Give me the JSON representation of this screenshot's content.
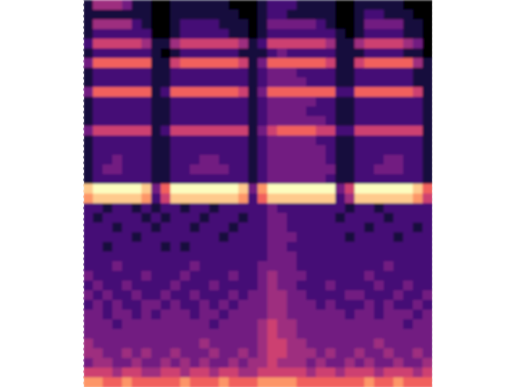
{
  "chart_data": {
    "type": "heatmap",
    "tick_labels": false,
    "xlim": [
      0,
      36
    ],
    "ylim": [
      0,
      40
    ],
    "zlim": [
      0,
      9
    ],
    "cells": [
      [
        1,
        4,
        4,
        4,
        3,
        1,
        1,
        0,
        0,
        1,
        1,
        1,
        1,
        1,
        1,
        0,
        0,
        0,
        1,
        2,
        2,
        2,
        1,
        1,
        1,
        1,
        0,
        0,
        1,
        1,
        1,
        1,
        1,
        0,
        0,
        0
      ],
      [
        1,
        1,
        1,
        1,
        1,
        1,
        1,
        0,
        0,
        1,
        1,
        1,
        1,
        1,
        1,
        1,
        0,
        0,
        1,
        2,
        2,
        1,
        1,
        1,
        1,
        1,
        0,
        0,
        1,
        2,
        2,
        1,
        1,
        1,
        0,
        0
      ],
      [
        1,
        4,
        4,
        4,
        4,
        2,
        1,
        0,
        0,
        1,
        2,
        2,
        2,
        2,
        1,
        1,
        1,
        0,
        1,
        3,
        3,
        3,
        3,
        3,
        2,
        1,
        0,
        0,
        1,
        3,
        3,
        3,
        3,
        1,
        1,
        0
      ],
      [
        1,
        2,
        2,
        2,
        2,
        2,
        2,
        0,
        0,
        1,
        2,
        2,
        2,
        2,
        2,
        1,
        1,
        0,
        1,
        2,
        2,
        2,
        2,
        2,
        2,
        2,
        1,
        0,
        1,
        2,
        2,
        2,
        2,
        1,
        1,
        0
      ],
      [
        2,
        5,
        5,
        5,
        5,
        5,
        4,
        1,
        1,
        4,
        5,
        5,
        5,
        5,
        5,
        5,
        4,
        1,
        2,
        5,
        5,
        5,
        5,
        5,
        5,
        4,
        1,
        1,
        4,
        5,
        5,
        5,
        5,
        4,
        3,
        0
      ],
      [
        1,
        2,
        2,
        2,
        2,
        2,
        2,
        1,
        0,
        1,
        2,
        2,
        2,
        2,
        2,
        2,
        1,
        1,
        1,
        2,
        3,
        2,
        2,
        2,
        2,
        2,
        1,
        1,
        1,
        2,
        2,
        2,
        2,
        1,
        1,
        0
      ],
      [
        3,
        6,
        6,
        6,
        6,
        6,
        6,
        1,
        1,
        5,
        6,
        6,
        6,
        6,
        6,
        6,
        5,
        1,
        3,
        6,
        6,
        6,
        6,
        6,
        6,
        5,
        1,
        1,
        5,
        6,
        6,
        6,
        6,
        6,
        4,
        1
      ],
      [
        1,
        2,
        2,
        2,
        2,
        2,
        2,
        1,
        1,
        2,
        2,
        2,
        2,
        2,
        2,
        2,
        2,
        1,
        2,
        3,
        3,
        3,
        2,
        2,
        2,
        2,
        1,
        1,
        2,
        2,
        2,
        2,
        2,
        2,
        1,
        1
      ],
      [
        1,
        2,
        2,
        2,
        2,
        2,
        2,
        1,
        1,
        2,
        2,
        2,
        2,
        2,
        2,
        2,
        2,
        1,
        2,
        3,
        3,
        3,
        3,
        2,
        2,
        2,
        1,
        1,
        2,
        2,
        2,
        2,
        2,
        2,
        1,
        1
      ],
      [
        3,
        6,
        6,
        6,
        6,
        6,
        6,
        1,
        2,
        6,
        6,
        6,
        6,
        6,
        6,
        6,
        5,
        1,
        3,
        6,
        6,
        6,
        6,
        6,
        6,
        6,
        2,
        2,
        6,
        6,
        6,
        6,
        6,
        6,
        5,
        1
      ],
      [
        1,
        2,
        2,
        2,
        2,
        2,
        2,
        1,
        1,
        2,
        2,
        2,
        2,
        2,
        2,
        2,
        2,
        1,
        2,
        3,
        3,
        3,
        3,
        3,
        2,
        2,
        1,
        1,
        2,
        2,
        2,
        2,
        2,
        2,
        2,
        1
      ],
      [
        1,
        2,
        2,
        2,
        2,
        2,
        2,
        1,
        1,
        2,
        2,
        2,
        2,
        2,
        2,
        2,
        2,
        1,
        2,
        3,
        3,
        3,
        3,
        2,
        2,
        2,
        1,
        1,
        2,
        2,
        2,
        2,
        2,
        2,
        2,
        1
      ],
      [
        1,
        2,
        2,
        2,
        2,
        2,
        2,
        1,
        1,
        2,
        2,
        2,
        2,
        2,
        2,
        2,
        2,
        1,
        2,
        3,
        3,
        3,
        3,
        3,
        3,
        2,
        1,
        1,
        2,
        2,
        2,
        2,
        2,
        2,
        2,
        1
      ],
      [
        3,
        5,
        5,
        5,
        5,
        5,
        5,
        1,
        2,
        5,
        5,
        5,
        5,
        5,
        5,
        5,
        5,
        1,
        3,
        5,
        6,
        6,
        6,
        6,
        5,
        5,
        2,
        2,
        5,
        5,
        5,
        5,
        5,
        5,
        5,
        1
      ],
      [
        1,
        2,
        2,
        2,
        2,
        2,
        2,
        1,
        1,
        2,
        2,
        2,
        2,
        2,
        2,
        2,
        2,
        1,
        2,
        3,
        3,
        3,
        3,
        3,
        2,
        2,
        1,
        1,
        2,
        2,
        2,
        2,
        2,
        2,
        2,
        1
      ],
      [
        1,
        2,
        2,
        2,
        2,
        2,
        2,
        1,
        1,
        2,
        2,
        2,
        2,
        2,
        2,
        2,
        2,
        1,
        2,
        3,
        3,
        3,
        3,
        3,
        3,
        2,
        1,
        1,
        2,
        2,
        2,
        2,
        2,
        2,
        2,
        1
      ],
      [
        1,
        2,
        2,
        3,
        2,
        2,
        2,
        1,
        1,
        2,
        2,
        2,
        3,
        3,
        2,
        2,
        2,
        1,
        2,
        3,
        3,
        3,
        3,
        3,
        3,
        2,
        1,
        1,
        2,
        2,
        2,
        3,
        3,
        2,
        2,
        1
      ],
      [
        1,
        2,
        3,
        3,
        2,
        2,
        2,
        1,
        1,
        2,
        2,
        3,
        3,
        3,
        3,
        2,
        2,
        1,
        2,
        3,
        3,
        3,
        3,
        3,
        3,
        3,
        1,
        1,
        2,
        2,
        3,
        3,
        3,
        2,
        2,
        1
      ],
      [
        1,
        2,
        2,
        2,
        2,
        2,
        2,
        1,
        1,
        2,
        2,
        2,
        2,
        2,
        2,
        2,
        2,
        1,
        2,
        3,
        3,
        3,
        3,
        3,
        3,
        2,
        1,
        1,
        2,
        2,
        2,
        2,
        2,
        2,
        2,
        1
      ],
      [
        8,
        9,
        9,
        9,
        9,
        9,
        8,
        3,
        6,
        9,
        9,
        9,
        9,
        9,
        9,
        9,
        8,
        3,
        7,
        9,
        9,
        9,
        9,
        9,
        9,
        9,
        3,
        5,
        9,
        9,
        9,
        9,
        9,
        9,
        8,
        6
      ],
      [
        7,
        8,
        8,
        8,
        8,
        8,
        7,
        2,
        5,
        8,
        8,
        8,
        8,
        8,
        8,
        8,
        7,
        2,
        6,
        8,
        8,
        8,
        8,
        8,
        8,
        8,
        2,
        4,
        8,
        8,
        8,
        8,
        8,
        8,
        7,
        5
      ],
      [
        2,
        2,
        1,
        2,
        2,
        1,
        2,
        1,
        2,
        2,
        1,
        2,
        2,
        1,
        2,
        2,
        2,
        2,
        2,
        3,
        2,
        2,
        2,
        2,
        2,
        2,
        2,
        1,
        2,
        2,
        1,
        2,
        2,
        2,
        2,
        2
      ],
      [
        2,
        1,
        2,
        2,
        2,
        2,
        1,
        2,
        1,
        2,
        2,
        2,
        1,
        2,
        2,
        2,
        1,
        2,
        2,
        3,
        3,
        2,
        2,
        2,
        2,
        2,
        1,
        2,
        2,
        2,
        2,
        1,
        2,
        2,
        2,
        2
      ],
      [
        2,
        2,
        2,
        1,
        2,
        2,
        2,
        1,
        2,
        2,
        2,
        1,
        2,
        2,
        2,
        1,
        2,
        2,
        2,
        3,
        3,
        2,
        2,
        2,
        2,
        2,
        2,
        2,
        2,
        1,
        2,
        2,
        2,
        2,
        1,
        2
      ],
      [
        2,
        2,
        2,
        2,
        2,
        1,
        2,
        2,
        2,
        2,
        2,
        2,
        2,
        2,
        1,
        2,
        2,
        2,
        2,
        3,
        3,
        3,
        2,
        2,
        2,
        2,
        2,
        1,
        2,
        2,
        2,
        2,
        1,
        2,
        2,
        2
      ],
      [
        2,
        2,
        1,
        2,
        2,
        2,
        2,
        2,
        1,
        2,
        1,
        2,
        2,
        2,
        2,
        2,
        2,
        2,
        2,
        3,
        3,
        2,
        2,
        2,
        2,
        2,
        2,
        2,
        2,
        2,
        2,
        2,
        2,
        2,
        2,
        2
      ],
      [
        2,
        2,
        2,
        2,
        2,
        2,
        2,
        2,
        2,
        2,
        2,
        2,
        2,
        2,
        2,
        2,
        2,
        2,
        2,
        3,
        3,
        3,
        2,
        2,
        2,
        2,
        2,
        2,
        2,
        2,
        2,
        2,
        2,
        2,
        2,
        2
      ],
      [
        2,
        2,
        2,
        3,
        2,
        2,
        2,
        2,
        2,
        2,
        2,
        3,
        2,
        2,
        2,
        2,
        2,
        2,
        3,
        3,
        3,
        3,
        2,
        2,
        2,
        2,
        2,
        2,
        2,
        2,
        2,
        3,
        2,
        2,
        2,
        2
      ],
      [
        3,
        2,
        2,
        2,
        2,
        2,
        3,
        2,
        2,
        2,
        3,
        2,
        2,
        2,
        2,
        3,
        2,
        2,
        3,
        4,
        3,
        3,
        3,
        2,
        2,
        2,
        2,
        2,
        2,
        3,
        2,
        2,
        2,
        2,
        2,
        2
      ],
      [
        2,
        3,
        2,
        2,
        3,
        2,
        2,
        2,
        2,
        3,
        2,
        2,
        2,
        3,
        2,
        2,
        2,
        2,
        3,
        4,
        3,
        3,
        2,
        2,
        2,
        3,
        2,
        2,
        2,
        2,
        3,
        2,
        2,
        3,
        2,
        2
      ],
      [
        3,
        2,
        3,
        2,
        2,
        3,
        2,
        2,
        3,
        2,
        2,
        3,
        2,
        2,
        2,
        3,
        2,
        3,
        3,
        4,
        4,
        3,
        3,
        2,
        2,
        2,
        2,
        3,
        3,
        2,
        2,
        2,
        3,
        2,
        2,
        3
      ],
      [
        2,
        3,
        2,
        3,
        2,
        2,
        3,
        3,
        2,
        3,
        2,
        2,
        3,
        2,
        3,
        2,
        3,
        3,
        3,
        4,
        4,
        3,
        3,
        3,
        2,
        3,
        2,
        2,
        2,
        3,
        2,
        3,
        2,
        2,
        3,
        2
      ],
      [
        3,
        3,
        2,
        3,
        3,
        2,
        3,
        2,
        3,
        3,
        3,
        2,
        3,
        3,
        2,
        3,
        3,
        3,
        3,
        4,
        4,
        3,
        3,
        3,
        3,
        3,
        3,
        2,
        3,
        3,
        2,
        3,
        3,
        3,
        2,
        3
      ],
      [
        3,
        3,
        3,
        2,
        3,
        3,
        3,
        3,
        3,
        3,
        3,
        3,
        3,
        2,
        3,
        3,
        3,
        3,
        4,
        5,
        4,
        4,
        3,
        3,
        3,
        3,
        3,
        3,
        3,
        3,
        3,
        3,
        3,
        2,
        3,
        3
      ],
      [
        3,
        3,
        3,
        3,
        3,
        3,
        3,
        3,
        3,
        3,
        3,
        3,
        3,
        3,
        3,
        3,
        3,
        3,
        4,
        5,
        4,
        4,
        3,
        3,
        3,
        3,
        3,
        3,
        3,
        3,
        3,
        3,
        3,
        3,
        3,
        3
      ],
      [
        4,
        3,
        3,
        3,
        3,
        3,
        3,
        3,
        3,
        3,
        3,
        3,
        4,
        3,
        3,
        3,
        3,
        3,
        4,
        5,
        5,
        4,
        4,
        3,
        3,
        3,
        3,
        3,
        3,
        3,
        4,
        3,
        3,
        3,
        3,
        3
      ],
      [
        4,
        4,
        3,
        3,
        4,
        3,
        4,
        3,
        3,
        4,
        3,
        3,
        3,
        4,
        3,
        3,
        4,
        3,
        4,
        5,
        5,
        4,
        4,
        4,
        3,
        4,
        3,
        3,
        4,
        3,
        3,
        4,
        3,
        3,
        4,
        3
      ],
      [
        3,
        4,
        4,
        3,
        3,
        4,
        3,
        3,
        4,
        3,
        4,
        3,
        4,
        3,
        3,
        4,
        3,
        4,
        4,
        5,
        4,
        4,
        4,
        3,
        4,
        3,
        3,
        4,
        3,
        4,
        3,
        3,
        4,
        3,
        3,
        4
      ],
      [
        5,
        5,
        5,
        4,
        5,
        5,
        4,
        4,
        5,
        5,
        4,
        5,
        5,
        4,
        5,
        5,
        4,
        4,
        5,
        5,
        5,
        5,
        5,
        4,
        5,
        5,
        4,
        5,
        5,
        5,
        4,
        5,
        5,
        5,
        4,
        5
      ],
      [
        7,
        7,
        6,
        6,
        7,
        6,
        6,
        6,
        6,
        6,
        7,
        6,
        6,
        6,
        7,
        6,
        6,
        6,
        7,
        7,
        7,
        7,
        6,
        6,
        6,
        6,
        6,
        6,
        6,
        7,
        6,
        6,
        7,
        6,
        6,
        6
      ]
    ]
  }
}
